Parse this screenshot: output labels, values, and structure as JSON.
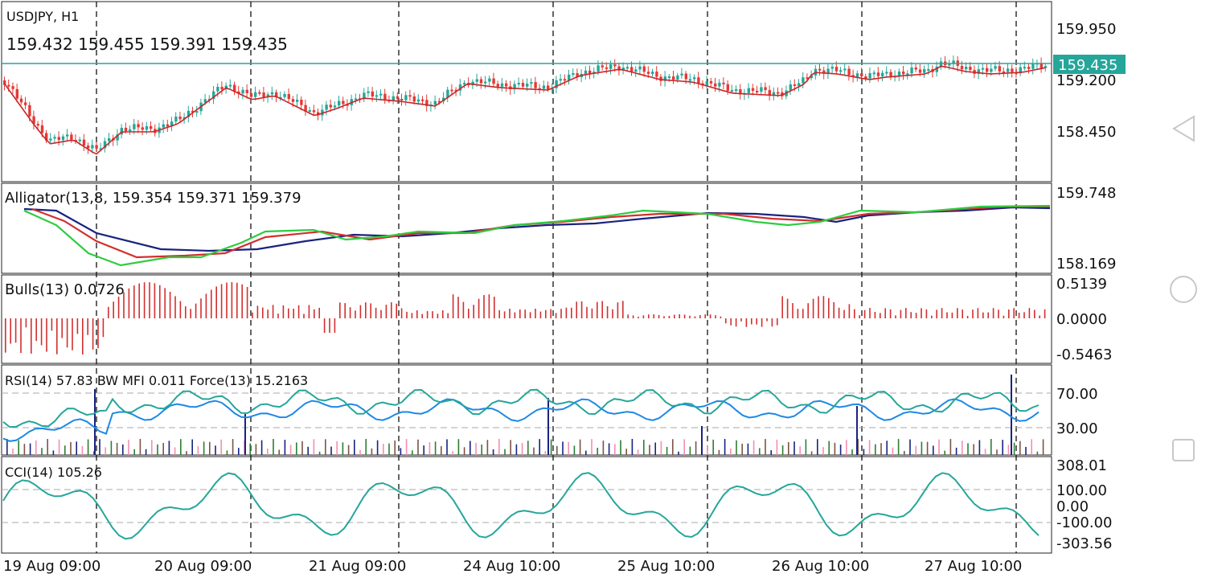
{
  "symbol_title": "USDJPY, H1",
  "ohlc_line": "159.432 159.455 159.391 159.435",
  "current_price_tag": "159.435",
  "price_axis": [
    "159.950",
    "159.200",
    "158.450"
  ],
  "alligator": {
    "label": "Alligator(13,8, 159.354 159.371 159.379",
    "axis": [
      "159.748",
      "158.169"
    ]
  },
  "bulls": {
    "label": "Bulls(13) 0.0726",
    "axis": [
      "0.5139",
      "0.0000",
      "-0.5463"
    ]
  },
  "rsi": {
    "label": "RSI(14) 57.83 BW MFI 0.011 Force(13) 15.2163",
    "axis": [
      "70.00",
      "30.00"
    ]
  },
  "cci": {
    "label": "CCI(14) 105.26",
    "axis": [
      "308.01",
      "100.00",
      "0.00",
      "-100.00",
      "-303.56"
    ]
  },
  "date_labels": [
    "19 Aug 09:00",
    "20 Aug 09:00",
    "21 Aug 09:00",
    "24 Aug 10:00",
    "25 Aug 10:00",
    "26 Aug 10:00",
    "27 Aug 10:00"
  ],
  "colors": {
    "bull_candle": "#26a69a",
    "bear_candle": "#e53935",
    "price_line": "#26a69a",
    "ma_line": "#c62828",
    "jaw": "#1a237e",
    "teeth": "#d32f2f",
    "lips": "#2ecc40",
    "bulls_bar": "#d32f2f",
    "rsi": "#26a69a",
    "mfi": "#1e88e5",
    "cci": "#26a69a"
  },
  "nav": {
    "back_icon": "back-triangle-icon",
    "home_icon": "home-circle-icon",
    "recents_icon": "recents-square-icon"
  }
}
